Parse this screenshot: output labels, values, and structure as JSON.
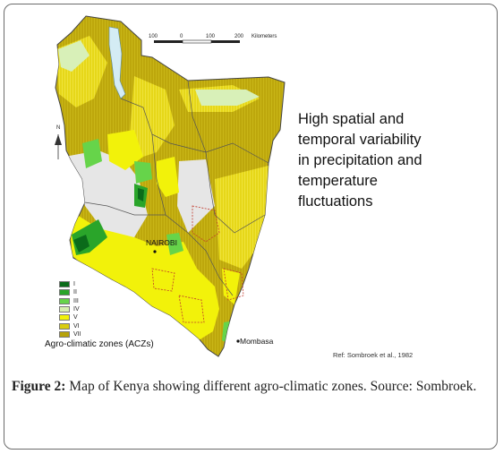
{
  "note": {
    "line1": "High spatial and",
    "line2": "temporal variability",
    "line3": "in precipitation and",
    "line4": "temperature",
    "line5": "fluctuations"
  },
  "scale_bar": {
    "ticks": [
      "100",
      "0",
      "100",
      "200"
    ],
    "unit": "Kilometers"
  },
  "north_label": "N",
  "cities": {
    "nairobi": "NAIROBI",
    "mombasa": "Mombasa"
  },
  "legend": {
    "title": "Agro-climatic zones (ACZs)",
    "zones": [
      {
        "label": "I",
        "color": "#0b6b1a"
      },
      {
        "label": "II",
        "color": "#2aa52a"
      },
      {
        "label": "III",
        "color": "#66d44a"
      },
      {
        "label": "IV",
        "color": "#d8efb0"
      },
      {
        "label": "V",
        "color": "#f2f20a"
      },
      {
        "label": "VI",
        "color": "#d8cc10"
      },
      {
        "label": "VII",
        "color": "#b6a20a"
      }
    ]
  },
  "reference": "Ref: Sombroek et al., 1982",
  "caption": {
    "label": "Figure 2:",
    "text": " Map of Kenya showing different agro-climatic zones. Source: Sombroek."
  }
}
